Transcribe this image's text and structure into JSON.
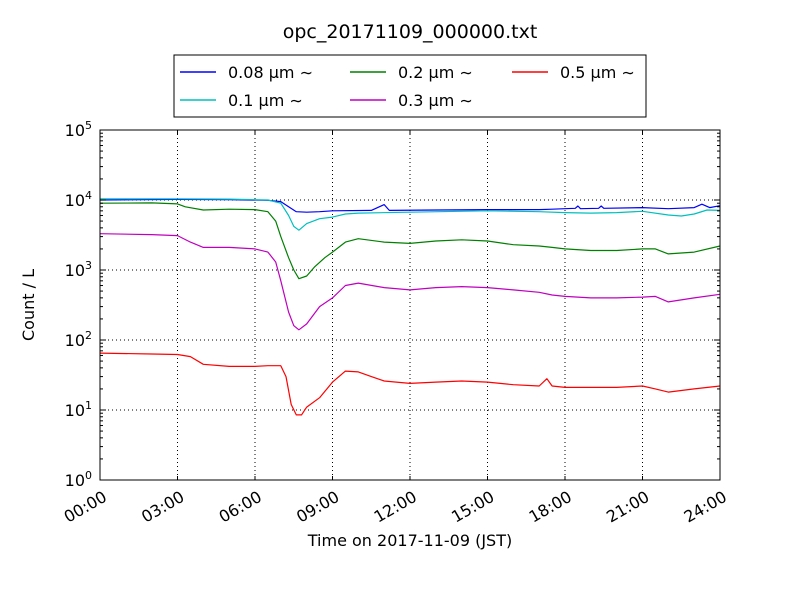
{
  "chart_data": {
    "type": "line",
    "title": "opc_20171109_000000.txt",
    "xlabel": "Time on 2017-11-09 (JST)",
    "ylabel": "Count / L",
    "x_unit": "hours",
    "xlim": [
      0,
      24
    ],
    "ylim_exponent": [
      0,
      5
    ],
    "y_scale": "log",
    "grid": true,
    "legend_placement": "top-center",
    "x_ticks": [
      {
        "value": 0,
        "label": "00:00"
      },
      {
        "value": 3,
        "label": "03:00"
      },
      {
        "value": 6,
        "label": "06:00"
      },
      {
        "value": 9,
        "label": "09:00"
      },
      {
        "value": 12,
        "label": "12:00"
      },
      {
        "value": 15,
        "label": "15:00"
      },
      {
        "value": 18,
        "label": "18:00"
      },
      {
        "value": 21,
        "label": "21:00"
      },
      {
        "value": 24,
        "label": "24:00"
      }
    ],
    "y_ticks": [
      {
        "value": 0,
        "base": "10",
        "exp": "0"
      },
      {
        "value": 1,
        "base": "10",
        "exp": "1"
      },
      {
        "value": 2,
        "base": "10",
        "exp": "2"
      },
      {
        "value": 3,
        "base": "10",
        "exp": "3"
      },
      {
        "value": 4,
        "base": "10",
        "exp": "4"
      },
      {
        "value": 5,
        "base": "10",
        "exp": "5"
      }
    ],
    "series": [
      {
        "name": "0.08 μm ∼",
        "color": "#0000ff",
        "points": [
          [
            0,
            10000
          ],
          [
            3,
            10200
          ],
          [
            5,
            10100
          ],
          [
            6.5,
            9900
          ],
          [
            7,
            9500
          ],
          [
            7.3,
            8000
          ],
          [
            7.6,
            6800
          ],
          [
            8,
            6700
          ],
          [
            8.5,
            6800
          ],
          [
            9,
            7000
          ],
          [
            10.5,
            7100
          ],
          [
            11,
            8600
          ],
          [
            11.2,
            7100
          ],
          [
            13,
            7200
          ],
          [
            15,
            7300
          ],
          [
            17,
            7300
          ],
          [
            17.5,
            7400
          ],
          [
            18,
            7500
          ],
          [
            18.4,
            7600
          ],
          [
            18.5,
            8200
          ],
          [
            18.6,
            7500
          ],
          [
            19.3,
            7600
          ],
          [
            19.4,
            8200
          ],
          [
            19.5,
            7600
          ],
          [
            21,
            7800
          ],
          [
            22,
            7500
          ],
          [
            23,
            7800
          ],
          [
            23.3,
            8700
          ],
          [
            23.6,
            7800
          ],
          [
            24,
            8300
          ]
        ]
      },
      {
        "name": "0.1 μm ∼",
        "color": "#00bfbf",
        "points": [
          [
            0,
            10400
          ],
          [
            3,
            10400
          ],
          [
            5,
            10300
          ],
          [
            6.5,
            10000
          ],
          [
            7,
            9000
          ],
          [
            7.3,
            6000
          ],
          [
            7.5,
            4200
          ],
          [
            7.7,
            3700
          ],
          [
            8,
            4600
          ],
          [
            8.5,
            5400
          ],
          [
            9,
            5700
          ],
          [
            9.5,
            6300
          ],
          [
            10,
            6500
          ],
          [
            12,
            6700
          ],
          [
            15,
            7000
          ],
          [
            17,
            6800
          ],
          [
            18,
            6600
          ],
          [
            19,
            6500
          ],
          [
            20,
            6600
          ],
          [
            21,
            6900
          ],
          [
            22,
            6100
          ],
          [
            22.5,
            5900
          ],
          [
            23,
            6300
          ],
          [
            23.5,
            7200
          ],
          [
            24,
            7100
          ]
        ]
      },
      {
        "name": "0.2 μm ∼",
        "color": "#008000",
        "points": [
          [
            0,
            9000
          ],
          [
            2,
            9100
          ],
          [
            3,
            8800
          ],
          [
            3.3,
            8000
          ],
          [
            4,
            7200
          ],
          [
            5,
            7400
          ],
          [
            6,
            7300
          ],
          [
            6.5,
            6800
          ],
          [
            6.8,
            5000
          ],
          [
            7,
            3000
          ],
          [
            7.3,
            1500
          ],
          [
            7.5,
            1000
          ],
          [
            7.7,
            750
          ],
          [
            8,
            820
          ],
          [
            8.3,
            1100
          ],
          [
            8.7,
            1500
          ],
          [
            9,
            1800
          ],
          [
            9.5,
            2500
          ],
          [
            10,
            2800
          ],
          [
            11,
            2500
          ],
          [
            12,
            2400
          ],
          [
            13,
            2600
          ],
          [
            14,
            2700
          ],
          [
            15,
            2600
          ],
          [
            16,
            2300
          ],
          [
            17,
            2200
          ],
          [
            17.5,
            2100
          ],
          [
            18,
            2000
          ],
          [
            19,
            1900
          ],
          [
            20,
            1900
          ],
          [
            21,
            2000
          ],
          [
            21.5,
            2000
          ],
          [
            22,
            1700
          ],
          [
            23,
            1800
          ],
          [
            24,
            2200
          ]
        ]
      },
      {
        "name": "0.3 μm ∼",
        "color": "#bf00bf",
        "points": [
          [
            0,
            3300
          ],
          [
            2,
            3200
          ],
          [
            3,
            3100
          ],
          [
            3.5,
            2500
          ],
          [
            4,
            2100
          ],
          [
            5,
            2100
          ],
          [
            6,
            2000
          ],
          [
            6.5,
            1800
          ],
          [
            6.8,
            1300
          ],
          [
            7,
            700
          ],
          [
            7.3,
            250
          ],
          [
            7.5,
            160
          ],
          [
            7.7,
            140
          ],
          [
            8,
            170
          ],
          [
            8.5,
            300
          ],
          [
            9,
            400
          ],
          [
            9.5,
            600
          ],
          [
            10,
            650
          ],
          [
            11,
            560
          ],
          [
            12,
            520
          ],
          [
            13,
            560
          ],
          [
            14,
            580
          ],
          [
            15,
            560
          ],
          [
            16,
            520
          ],
          [
            17,
            480
          ],
          [
            17.5,
            440
          ],
          [
            18,
            420
          ],
          [
            19,
            400
          ],
          [
            20,
            400
          ],
          [
            21,
            410
          ],
          [
            21.5,
            420
          ],
          [
            22,
            350
          ],
          [
            23,
            400
          ],
          [
            24,
            450
          ]
        ]
      },
      {
        "name": "0.5 μm ∼",
        "color": "#ff0000",
        "points": [
          [
            0,
            65
          ],
          [
            2,
            63
          ],
          [
            3,
            62
          ],
          [
            3.5,
            58
          ],
          [
            4,
            45
          ],
          [
            5,
            42
          ],
          [
            6,
            42
          ],
          [
            6.5,
            43
          ],
          [
            7,
            43
          ],
          [
            7.2,
            30
          ],
          [
            7.4,
            12
          ],
          [
            7.6,
            8.5
          ],
          [
            7.8,
            8.5
          ],
          [
            8,
            11
          ],
          [
            8.5,
            15
          ],
          [
            9,
            25
          ],
          [
            9.5,
            36
          ],
          [
            10,
            35
          ],
          [
            10.5,
            30
          ],
          [
            11,
            26
          ],
          [
            12,
            24
          ],
          [
            13,
            25
          ],
          [
            14,
            26
          ],
          [
            15,
            25
          ],
          [
            16,
            23
          ],
          [
            17,
            22
          ],
          [
            17.3,
            28
          ],
          [
            17.5,
            22
          ],
          [
            18,
            21
          ],
          [
            19,
            21
          ],
          [
            20,
            21
          ],
          [
            21,
            22
          ],
          [
            21.5,
            20
          ],
          [
            22,
            18
          ],
          [
            23,
            20
          ],
          [
            24,
            22
          ]
        ]
      }
    ]
  }
}
